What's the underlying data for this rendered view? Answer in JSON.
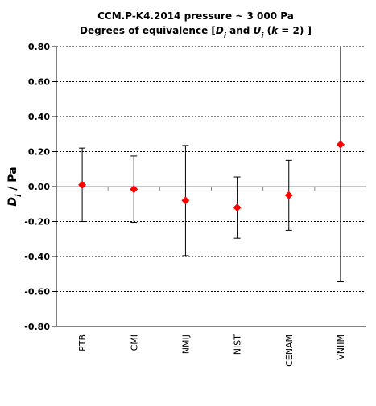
{
  "chart_data": {
    "type": "scatter",
    "title_line1": "CCM.P-K4.2014  pressure ~ 3 000 Pa",
    "title_line2_prefix": "Degrees of equivalence [",
    "title_line2_D": "D",
    "title_line2_i1": "i",
    "title_line2_and": " and ",
    "title_line2_U": "U",
    "title_line2_i2": "i",
    "title_line2_k_open": " (",
    "title_line2_k": "k",
    "title_line2_suffix": " = 2) ]",
    "ylabel_D": "D",
    "ylabel_i": "i",
    "ylabel_unit": " / Pa",
    "ylim": [
      -0.8,
      0.8
    ],
    "yticks": [
      0.8,
      0.6,
      0.4,
      0.2,
      0.0,
      -0.2,
      -0.4,
      -0.6,
      -0.8
    ],
    "ytick_labels": [
      "0.80",
      "0.60",
      "0.40",
      "0.20",
      "0.00",
      "-0.20",
      "-0.40",
      "-0.60",
      "-0.80"
    ],
    "categories": [
      "PTB",
      "CMI",
      "NMIJ",
      "NIST",
      "CENAM",
      "VNIIM"
    ],
    "values": [
      0.01,
      -0.015,
      -0.08,
      -0.12,
      -0.05,
      0.24
    ],
    "uncertainties": [
      0.21,
      0.19,
      0.315,
      0.175,
      0.2,
      0.785
    ],
    "grid": true,
    "marker_color": "#ff0000"
  }
}
